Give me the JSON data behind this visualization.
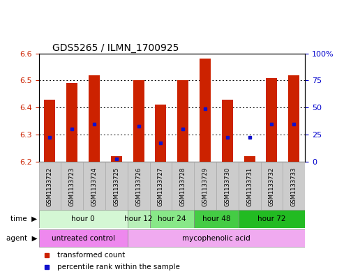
{
  "title": "GDS5265 / ILMN_1700925",
  "samples": [
    "GSM1133722",
    "GSM1133723",
    "GSM1133724",
    "GSM1133725",
    "GSM1133726",
    "GSM1133727",
    "GSM1133728",
    "GSM1133729",
    "GSM1133730",
    "GSM1133731",
    "GSM1133732",
    "GSM1133733"
  ],
  "bar_tops": [
    6.43,
    6.49,
    6.52,
    6.22,
    6.5,
    6.41,
    6.5,
    6.58,
    6.43,
    6.22,
    6.51,
    6.52
  ],
  "bar_bottom": 6.2,
  "percentile_values": [
    6.29,
    6.32,
    6.34,
    6.21,
    6.33,
    6.27,
    6.32,
    6.395,
    6.29,
    6.29,
    6.34,
    6.34
  ],
  "ylim": [
    6.2,
    6.6
  ],
  "yticks_left": [
    6.2,
    6.3,
    6.4,
    6.5,
    6.6
  ],
  "yticks_right": [
    0,
    25,
    50,
    75,
    100
  ],
  "ytick_right_labels": [
    "0",
    "25",
    "50",
    "75",
    "100%"
  ],
  "bar_color": "#cc2200",
  "percentile_color": "#1111cc",
  "time_groups": [
    {
      "label": "hour 0",
      "start": 0,
      "end": 4,
      "color": "#d4f7d4"
    },
    {
      "label": "hour 12",
      "start": 4,
      "end": 5,
      "color": "#b8f0b8"
    },
    {
      "label": "hour 24",
      "start": 5,
      "end": 7,
      "color": "#88e888"
    },
    {
      "label": "hour 48",
      "start": 7,
      "end": 9,
      "color": "#44cc44"
    },
    {
      "label": "hour 72",
      "start": 9,
      "end": 12,
      "color": "#22bb22"
    }
  ],
  "agent_groups": [
    {
      "label": "untreated control",
      "start": 0,
      "end": 4,
      "color": "#ee88ee"
    },
    {
      "label": "mycophenolic acid",
      "start": 4,
      "end": 12,
      "color": "#f0aaf0"
    }
  ],
  "bar_width": 0.5,
  "ylabel_left_color": "#cc2200",
  "ylabel_right_color": "#0000cc",
  "sample_bg": "#cccccc",
  "sample_border": "#aaaaaa"
}
